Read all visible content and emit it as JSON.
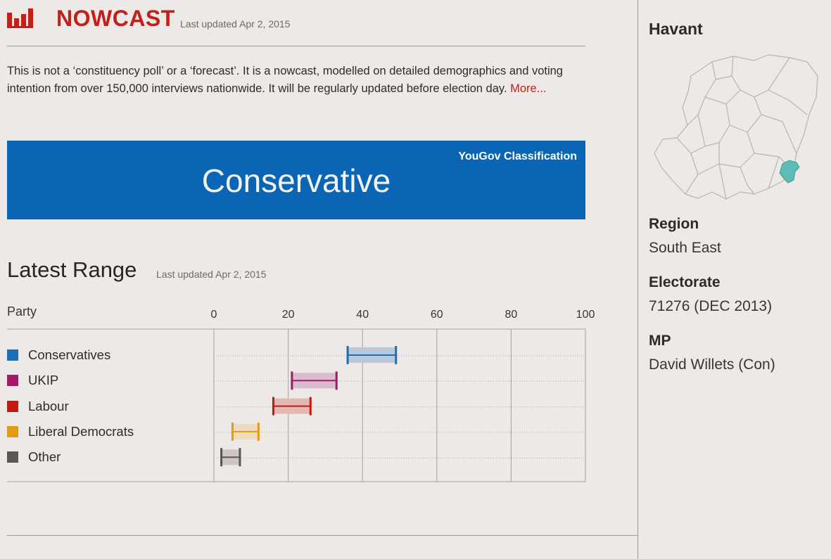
{
  "header": {
    "brand": "NOWCAST",
    "updated": "Last updated Apr 2, 2015"
  },
  "intro": {
    "text": "This is not a ‘constituency poll’ or a ‘forecast’. It is a nowcast, modelled on detailed demographics and voting intention from over 150,000 interviews nationwide. It will be regularly updated before election day.",
    "more": "More..."
  },
  "classification": {
    "label": "YouGov Classification",
    "value": "Conservative",
    "color": "#0a66b4"
  },
  "range": {
    "title": "Latest Range",
    "updated": "Last updated Apr 2, 2015"
  },
  "chart_data": {
    "type": "bar",
    "title": "Latest Range",
    "xlabel": "",
    "ylabel": "Party",
    "xlim": [
      0,
      100
    ],
    "xticks": [
      "0",
      "20",
      "40",
      "60",
      "80",
      "100"
    ],
    "grid": true,
    "series": [
      {
        "name": "Conservatives",
        "low": 36,
        "high": 49,
        "color": "#1a6fb7",
        "fill": "#b9c8da"
      },
      {
        "name": "UKIP",
        "low": 21,
        "high": 33,
        "color": "#a3186d",
        "fill": "#d9bccd"
      },
      {
        "name": "Labour",
        "low": 16,
        "high": 26,
        "color": "#c11a12",
        "fill": "#e2b9b2"
      },
      {
        "name": "Liberal Democrats",
        "low": 5,
        "high": 12,
        "color": "#e39b14",
        "fill": "#ecdcbd"
      },
      {
        "name": "Other",
        "low": 2,
        "high": 7,
        "color": "#5d5550",
        "fill": "#cdc6c2"
      }
    ]
  },
  "sidebar": {
    "area": "Havant",
    "map_highlight_color": "#5bbdb6",
    "region_label": "Region",
    "region_value": "South East",
    "electorate_label": "Electorate",
    "electorate_value": "71276 (DEC 2013)",
    "mp_label": "MP",
    "mp_value": "David Willets (Con)"
  }
}
